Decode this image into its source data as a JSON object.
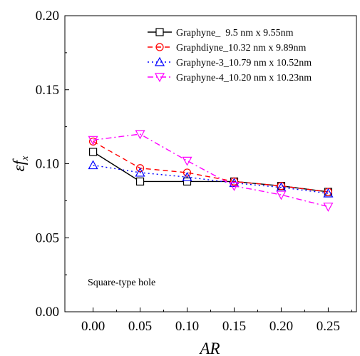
{
  "chart_data": {
    "type": "line",
    "xlabel": "AR",
    "ylabel_main": "εf",
    "ylabel_sub": "x",
    "xlim": [
      -0.03,
      0.28
    ],
    "ylim": [
      0.0,
      0.2
    ],
    "x_ticks": [
      "0.00",
      "0.05",
      "0.10",
      "0.15",
      "0.20",
      "0.25"
    ],
    "y_ticks": [
      "0.00",
      "0.05",
      "0.10",
      "0.15",
      "0.20"
    ],
    "x": [
      0.0,
      0.05,
      0.1,
      0.15,
      0.2,
      0.25
    ],
    "annotation": "Square-type hole",
    "legend_position": "top-right",
    "series": [
      {
        "name": "Graphyne_  9.5 nm x 9.55nm",
        "values": [
          0.108,
          0.088,
          0.088,
          0.088,
          0.085,
          0.081
        ],
        "color": "#000000",
        "marker": "square",
        "dash": "solid"
      },
      {
        "name": "Graphdiyne_10.32 nm x 9.89nm",
        "values": [
          0.115,
          0.097,
          0.094,
          0.088,
          0.085,
          0.081
        ],
        "color": "#ff0000",
        "marker": "circle",
        "dash": "dash"
      },
      {
        "name": "Graphyne-3_10.79 nm x 10.52nm",
        "values": [
          0.099,
          0.094,
          0.091,
          0.087,
          0.084,
          0.08
        ],
        "color": "#0000ff",
        "marker": "triangle-up",
        "dash": "dot"
      },
      {
        "name": "Graphyne-4_10.20 nm x 10.23nm",
        "values": [
          0.116,
          0.12,
          0.102,
          0.085,
          0.079,
          0.071
        ],
        "color": "#ff00ff",
        "marker": "triangle-down",
        "dash": "dashdot"
      }
    ]
  }
}
